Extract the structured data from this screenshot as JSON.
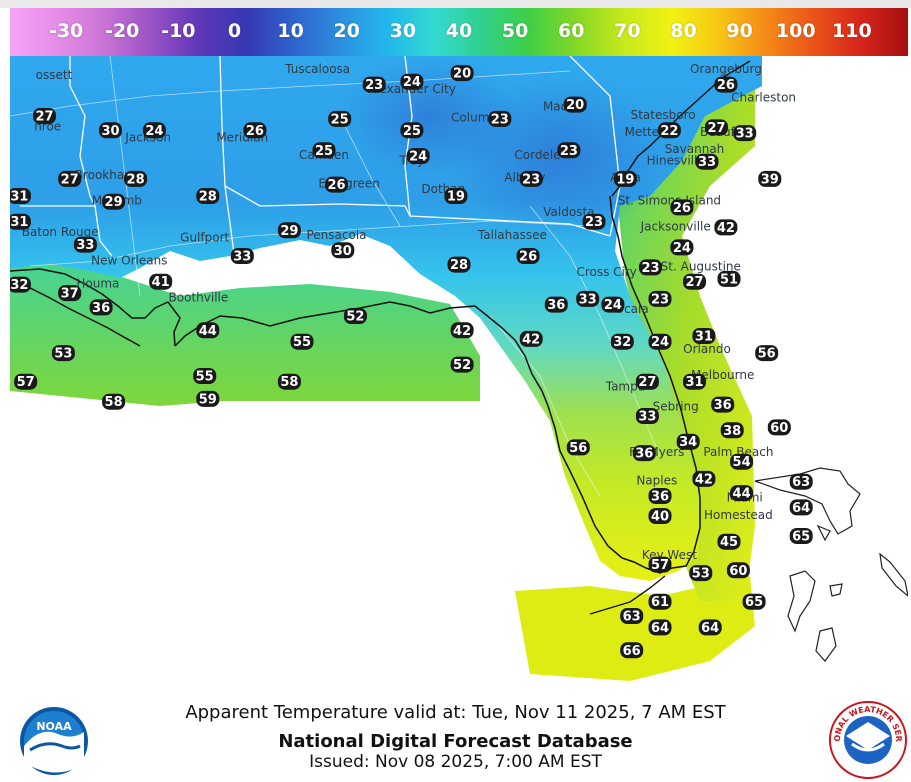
{
  "colors": {
    "ocean": "#ffffff",
    "border": "#ffffff",
    "coast": "#111111",
    "ramp": [
      "#f6a3f6",
      "#e58ee8",
      "#c973d6",
      "#9a52c6",
      "#5f37b8",
      "#3538b2",
      "#2f63cc",
      "#2d8fe0",
      "#22b8ec",
      "#35d9d0",
      "#2fd08c",
      "#3fcf45",
      "#86d826",
      "#c8e91c",
      "#f1f213",
      "#f7c615",
      "#f58a18",
      "#ea5418",
      "#d6251c",
      "#a40e10"
    ]
  },
  "colorbar": {
    "labels": [
      "-30",
      "-20",
      "-10",
      "0",
      "10",
      "20",
      "30",
      "40",
      "50",
      "60",
      "70",
      "80",
      "90",
      "100",
      "110"
    ],
    "min": -40,
    "max": 120
  },
  "caption": {
    "valid_line": "Apparent Temperature valid at: Tue, Nov 11 2025, 7 AM EST",
    "product": "National Digital Forecast Database",
    "issued": "Issued: Nov 08 2025, 7:00 AM EST"
  },
  "logos": {
    "noaa_text": "NOAA",
    "nws_text": "NATIONAL WEATHER SERVICE"
  },
  "cities": [
    {
      "name": "ossett",
      "lon": -91.5,
      "lat": 33.2
    },
    {
      "name": "nroe",
      "lon": -91.6,
      "lat": 32.3
    },
    {
      "name": "Jackson",
      "lon": -90.0,
      "lat": 32.1
    },
    {
      "name": "Meridian",
      "lon": -88.5,
      "lat": 32.1
    },
    {
      "name": "Tuscaloosa",
      "lon": -87.3,
      "lat": 33.3
    },
    {
      "name": "Alexander City",
      "lon": -85.8,
      "lat": 32.95
    },
    {
      "name": "Columbus",
      "lon": -84.7,
      "lat": 32.45
    },
    {
      "name": "Macon",
      "lon": -83.4,
      "lat": 32.65
    },
    {
      "name": "Orangeburg",
      "lon": -80.8,
      "lat": 33.3
    },
    {
      "name": "Charleston",
      "lon": -80.2,
      "lat": 32.8
    },
    {
      "name": "Beaufort",
      "lon": -80.8,
      "lat": 32.2
    },
    {
      "name": "Statesboro",
      "lon": -81.8,
      "lat": 32.5
    },
    {
      "name": "Metter",
      "lon": -82.1,
      "lat": 32.2
    },
    {
      "name": "Savannah",
      "lon": -81.3,
      "lat": 31.9
    },
    {
      "name": "Camden",
      "lon": -87.2,
      "lat": 31.8
    },
    {
      "name": "Troy",
      "lon": -85.8,
      "lat": 31.7
    },
    {
      "name": "Cordele",
      "lon": -83.8,
      "lat": 31.8
    },
    {
      "name": "Brookhaven",
      "lon": -90.6,
      "lat": 31.45
    },
    {
      "name": "Evergreen",
      "lon": -86.8,
      "lat": 31.3
    },
    {
      "name": "Albany",
      "lon": -84.0,
      "lat": 31.4
    },
    {
      "name": "Dothan",
      "lon": -85.3,
      "lat": 31.2
    },
    {
      "name": "Alma",
      "lon": -82.4,
      "lat": 31.4
    },
    {
      "name": "Hinesville",
      "lon": -81.6,
      "lat": 31.7
    },
    {
      "name": "Mccomb",
      "lon": -90.5,
      "lat": 31.0
    },
    {
      "name": "St. Simons Island",
      "lon": -81.7,
      "lat": 31.0
    },
    {
      "name": "Valdosta",
      "lon": -83.3,
      "lat": 30.8
    },
    {
      "name": "Baton Rouge",
      "lon": -91.4,
      "lat": 30.45
    },
    {
      "name": "Gulfport",
      "lon": -89.1,
      "lat": 30.35
    },
    {
      "name": "Pensacola",
      "lon": -87.0,
      "lat": 30.4
    },
    {
      "name": "Tallahassee",
      "lon": -84.2,
      "lat": 30.4
    },
    {
      "name": "Jacksonville",
      "lon": -81.6,
      "lat": 30.55
    },
    {
      "name": "New Orleans",
      "lon": -90.3,
      "lat": 29.95
    },
    {
      "name": "St. Augustine",
      "lon": -81.2,
      "lat": 29.85
    },
    {
      "name": "Houma",
      "lon": -90.8,
      "lat": 29.55
    },
    {
      "name": "Cross City",
      "lon": -82.7,
      "lat": 29.75
    },
    {
      "name": "Boothville",
      "lon": -89.2,
      "lat": 29.3
    },
    {
      "name": "Ocala",
      "lon": -82.3,
      "lat": 29.1
    },
    {
      "name": "Orlando",
      "lon": -81.1,
      "lat": 28.4
    },
    {
      "name": "Melbourne",
      "lon": -80.85,
      "lat": 27.95
    },
    {
      "name": "Tampa",
      "lon": -82.4,
      "lat": 27.75
    },
    {
      "name": "Sebring",
      "lon": -81.6,
      "lat": 27.4
    },
    {
      "name": "Palm Beach",
      "lon": -80.6,
      "lat": 26.6
    },
    {
      "name": "Ft. Myers",
      "lon": -81.9,
      "lat": 26.6
    },
    {
      "name": "Naples",
      "lon": -81.9,
      "lat": 26.1
    },
    {
      "name": "Miami",
      "lon": -80.5,
      "lat": 25.8
    },
    {
      "name": "Homestead",
      "lon": -80.6,
      "lat": 25.5
    },
    {
      "name": "Key West",
      "lon": -81.7,
      "lat": 24.8
    }
  ],
  "temps": [
    {
      "v": 27,
      "lon": -91.65,
      "lat": 32.55
    },
    {
      "v": 30,
      "lon": -90.6,
      "lat": 32.3
    },
    {
      "v": 24,
      "lon": -89.9,
      "lat": 32.3
    },
    {
      "v": 26,
      "lon": -88.3,
      "lat": 32.3
    },
    {
      "v": 25,
      "lon": -86.95,
      "lat": 32.5
    },
    {
      "v": 23,
      "lon": -86.4,
      "lat": 33.1
    },
    {
      "v": 24,
      "lon": -85.8,
      "lat": 33.15
    },
    {
      "v": 20,
      "lon": -85.0,
      "lat": 33.3
    },
    {
      "v": 23,
      "lon": -84.4,
      "lat": 32.5
    },
    {
      "v": 20,
      "lon": -83.2,
      "lat": 32.75
    },
    {
      "v": 25,
      "lon": -85.8,
      "lat": 32.3
    },
    {
      "v": 26,
      "lon": -80.8,
      "lat": 33.1
    },
    {
      "v": 22,
      "lon": -81.7,
      "lat": 32.3
    },
    {
      "v": 27,
      "lon": -80.95,
      "lat": 32.35
    },
    {
      "v": 33,
      "lon": -80.5,
      "lat": 32.25
    },
    {
      "v": 25,
      "lon": -87.2,
      "lat": 31.95
    },
    {
      "v": 24,
      "lon": -85.7,
      "lat": 31.85
    },
    {
      "v": 23,
      "lon": -83.3,
      "lat": 31.95
    },
    {
      "v": 33,
      "lon": -81.1,
      "lat": 31.75
    },
    {
      "v": 27,
      "lon": -91.25,
      "lat": 31.45
    },
    {
      "v": 28,
      "lon": -90.2,
      "lat": 31.45
    },
    {
      "v": 26,
      "lon": -87.0,
      "lat": 31.35
    },
    {
      "v": 23,
      "lon": -83.9,
      "lat": 31.45
    },
    {
      "v": 19,
      "lon": -82.4,
      "lat": 31.45
    },
    {
      "v": 39,
      "lon": -80.1,
      "lat": 31.45
    },
    {
      "v": 31,
      "lon": -92.05,
      "lat": 31.15
    },
    {
      "v": 29,
      "lon": -90.55,
      "lat": 31.05
    },
    {
      "v": 28,
      "lon": -89.05,
      "lat": 31.15
    },
    {
      "v": 19,
      "lon": -85.1,
      "lat": 31.15
    },
    {
      "v": 26,
      "lon": -81.5,
      "lat": 30.95
    },
    {
      "v": 31,
      "lon": -92.05,
      "lat": 30.7
    },
    {
      "v": 23,
      "lon": -82.9,
      "lat": 30.7
    },
    {
      "v": 42,
      "lon": -80.8,
      "lat": 30.6
    },
    {
      "v": 33,
      "lon": -91.0,
      "lat": 30.3
    },
    {
      "v": 29,
      "lon": -87.75,
      "lat": 30.55
    },
    {
      "v": 33,
      "lon": -88.5,
      "lat": 30.1
    },
    {
      "v": 30,
      "lon": -86.9,
      "lat": 30.2
    },
    {
      "v": 26,
      "lon": -83.95,
      "lat": 30.1
    },
    {
      "v": 24,
      "lon": -81.5,
      "lat": 30.25
    },
    {
      "v": 28,
      "lon": -85.05,
      "lat": 29.95
    },
    {
      "v": 23,
      "lon": -82.0,
      "lat": 29.9
    },
    {
      "v": 27,
      "lon": -81.3,
      "lat": 29.65
    },
    {
      "v": 51,
      "lon": -80.75,
      "lat": 29.7
    },
    {
      "v": 32,
      "lon": -92.05,
      "lat": 29.6
    },
    {
      "v": 41,
      "lon": -89.8,
      "lat": 29.65
    },
    {
      "v": 37,
      "lon": -91.25,
      "lat": 29.45
    },
    {
      "v": 36,
      "lon": -90.75,
      "lat": 29.2
    },
    {
      "v": 33,
      "lon": -83.0,
      "lat": 29.35
    },
    {
      "v": 23,
      "lon": -81.85,
      "lat": 29.35
    },
    {
      "v": 36,
      "lon": -83.5,
      "lat": 29.25
    },
    {
      "v": 24,
      "lon": -82.6,
      "lat": 29.25
    },
    {
      "v": 52,
      "lon": -86.7,
      "lat": 29.05
    },
    {
      "v": 44,
      "lon": -89.05,
      "lat": 28.8
    },
    {
      "v": 42,
      "lon": -85.0,
      "lat": 28.8
    },
    {
      "v": 42,
      "lon": -83.9,
      "lat": 28.65
    },
    {
      "v": 32,
      "lon": -82.45,
      "lat": 28.6
    },
    {
      "v": 24,
      "lon": -81.85,
      "lat": 28.6
    },
    {
      "v": 31,
      "lon": -81.15,
      "lat": 28.7
    },
    {
      "v": 55,
      "lon": -87.55,
      "lat": 28.6
    },
    {
      "v": 56,
      "lon": -80.15,
      "lat": 28.4
    },
    {
      "v": 53,
      "lon": -91.35,
      "lat": 28.4
    },
    {
      "v": 52,
      "lon": -85.0,
      "lat": 28.2
    },
    {
      "v": 55,
      "lon": -89.1,
      "lat": 28.0
    },
    {
      "v": 27,
      "lon": -82.05,
      "lat": 27.9
    },
    {
      "v": 31,
      "lon": -81.3,
      "lat": 27.9
    },
    {
      "v": 57,
      "lon": -91.95,
      "lat": 27.9
    },
    {
      "v": 58,
      "lon": -87.75,
      "lat": 27.9
    },
    {
      "v": 58,
      "lon": -90.55,
      "lat": 27.55
    },
    {
      "v": 59,
      "lon": -89.05,
      "lat": 27.6
    },
    {
      "v": 36,
      "lon": -80.85,
      "lat": 27.5
    },
    {
      "v": 33,
      "lon": -82.05,
      "lat": 27.3
    },
    {
      "v": 38,
      "lon": -80.7,
      "lat": 27.05
    },
    {
      "v": 60,
      "lon": -79.95,
      "lat": 27.1
    },
    {
      "v": 34,
      "lon": -81.4,
      "lat": 26.85
    },
    {
      "v": 56,
      "lon": -83.15,
      "lat": 26.75
    },
    {
      "v": 36,
      "lon": -82.1,
      "lat": 26.65
    },
    {
      "v": 54,
      "lon": -80.55,
      "lat": 26.5
    },
    {
      "v": 42,
      "lon": -81.15,
      "lat": 26.2
    },
    {
      "v": 63,
      "lon": -79.6,
      "lat": 26.15
    },
    {
      "v": 44,
      "lon": -80.55,
      "lat": 25.95
    },
    {
      "v": 36,
      "lon": -81.85,
      "lat": 25.9
    },
    {
      "v": 64,
      "lon": -79.6,
      "lat": 25.7
    },
    {
      "v": 40,
      "lon": -81.85,
      "lat": 25.55
    },
    {
      "v": 65,
      "lon": -79.6,
      "lat": 25.2
    },
    {
      "v": 45,
      "lon": -80.75,
      "lat": 25.1
    },
    {
      "v": 57,
      "lon": -81.85,
      "lat": 24.7
    },
    {
      "v": 53,
      "lon": -81.2,
      "lat": 24.55
    },
    {
      "v": 60,
      "lon": -80.6,
      "lat": 24.6
    },
    {
      "v": 61,
      "lon": -81.85,
      "lat": 24.05
    },
    {
      "v": 65,
      "lon": -80.35,
      "lat": 24.05
    },
    {
      "v": 63,
      "lon": -82.3,
      "lat": 23.8
    },
    {
      "v": 64,
      "lon": -81.85,
      "lat": 23.6
    },
    {
      "v": 64,
      "lon": -81.05,
      "lat": 23.6
    },
    {
      "v": 66,
      "lon": -82.3,
      "lat": 23.2
    }
  ]
}
